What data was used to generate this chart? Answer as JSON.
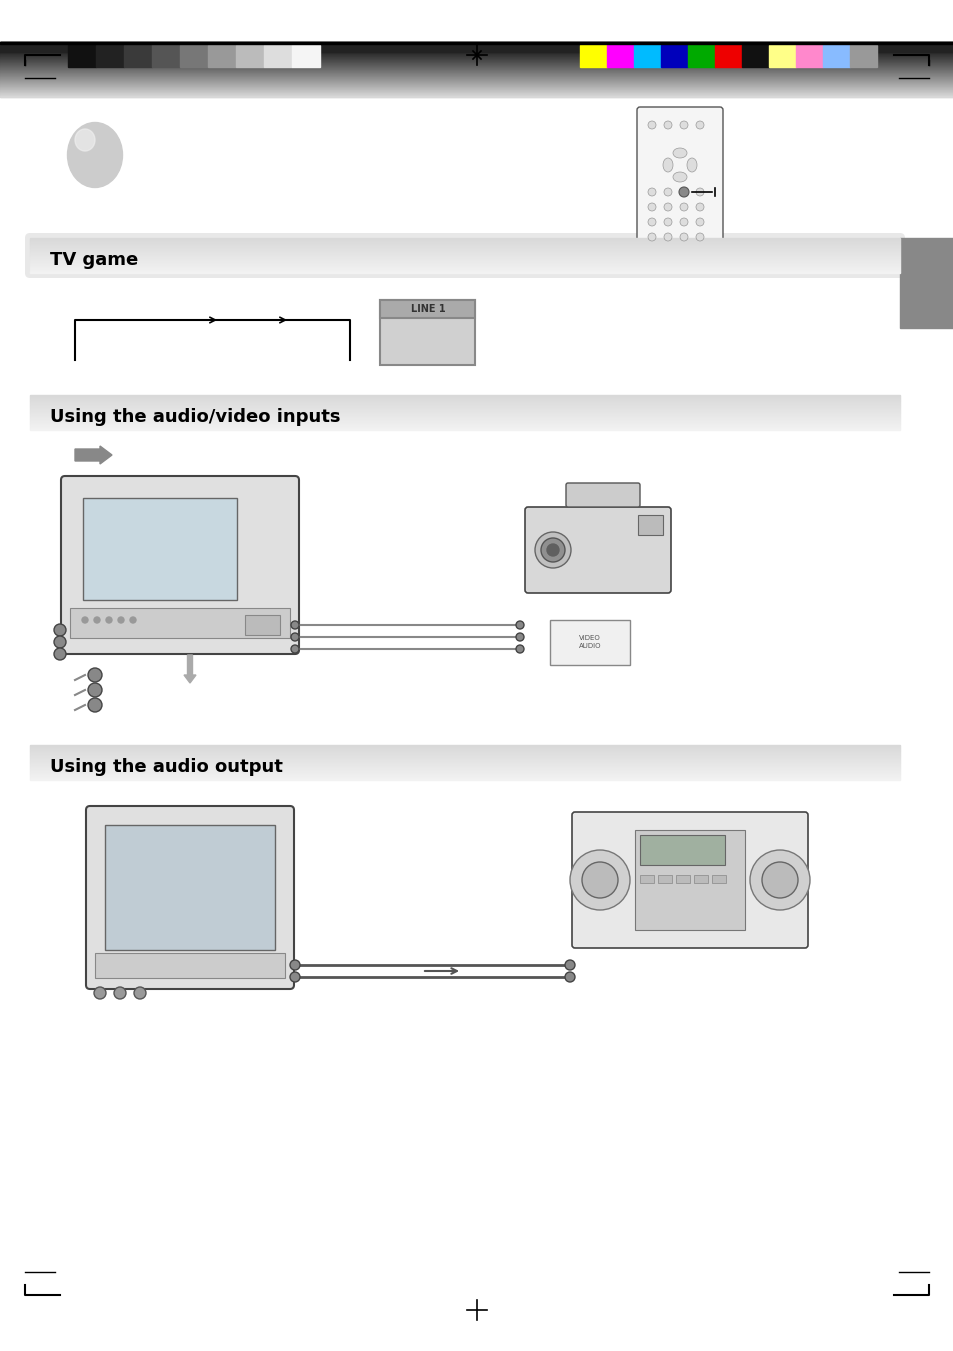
{
  "page_bg": "#ffffff",
  "header_bar_colors_left": [
    "#111111",
    "#333333",
    "#4a4a4a",
    "#666666",
    "#888888",
    "#aaaaaa",
    "#cccccc",
    "#eeeeee",
    "#ffffff"
  ],
  "header_bar_colors_right": [
    "#ffff00",
    "#ff00ff",
    "#00ccff",
    "#0000cc",
    "#00aa00",
    "#ff0000",
    "#111111",
    "#ffff99",
    "#ff99cc",
    "#99ccff",
    "#aaaaaa"
  ],
  "section1_title": "TV game",
  "section2_title": "Using the audio/video inputs",
  "section3_title": "Using the audio output",
  "gray_tab_color": "#888888"
}
